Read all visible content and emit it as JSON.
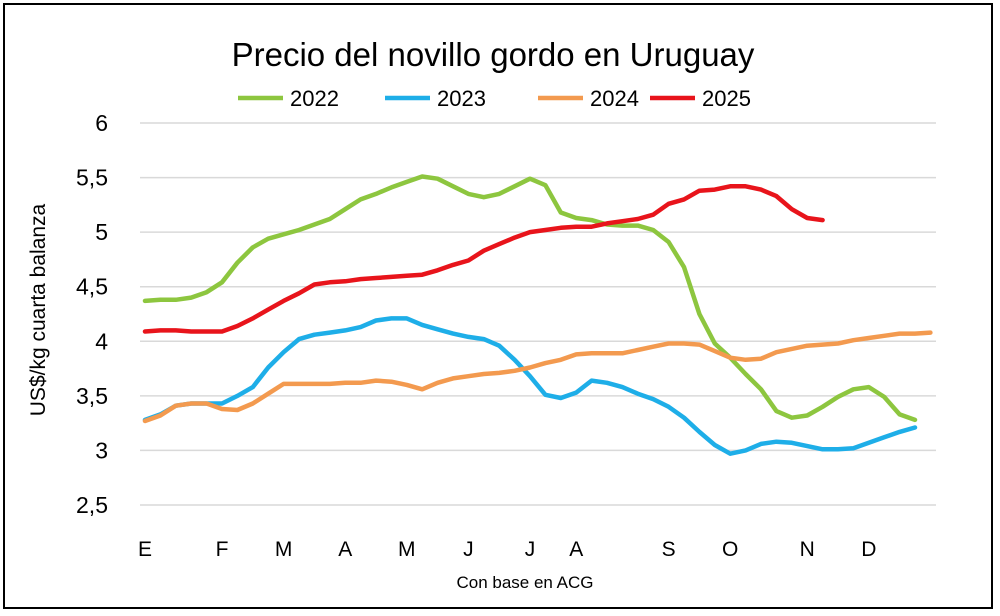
{
  "chart_data": {
    "type": "line",
    "title": "Precio del novillo gordo en Uruguay",
    "ylabel": "US$/kg cuarta balanza",
    "xlabel": "Con base en ACG",
    "ylim": [
      2.5,
      6
    ],
    "yticks": [
      "2,5",
      "3",
      "3,5",
      "4",
      "4,5",
      "5",
      "5,5",
      "6"
    ],
    "ytick_values": [
      2.5,
      3,
      3.5,
      4,
      4.5,
      5,
      5.5,
      6
    ],
    "xticks": [
      "E",
      "F",
      "M",
      "A",
      "M",
      "J",
      "J",
      "A",
      "S",
      "O",
      "N",
      "D"
    ],
    "xtick_weeks": [
      1,
      6,
      10,
      14,
      18,
      22,
      26,
      29,
      35,
      39,
      44,
      48
    ],
    "x_unit": "week of year",
    "grid": "horizontal",
    "legend_position": "top",
    "series": [
      {
        "name": "2022",
        "color": "#8DC63F",
        "values": [
          4.37,
          4.38,
          4.38,
          4.4,
          4.45,
          4.54,
          4.72,
          4.86,
          4.94,
          4.98,
          5.02,
          5.07,
          5.12,
          5.21,
          5.3,
          5.35,
          5.41,
          5.46,
          5.51,
          5.49,
          5.42,
          5.35,
          5.32,
          5.35,
          5.42,
          5.49,
          5.43,
          5.18,
          5.13,
          5.11,
          5.07,
          5.06,
          5.06,
          5.02,
          4.91,
          4.68,
          4.25,
          3.98,
          3.85,
          3.7,
          3.56,
          3.36,
          3.3,
          3.32,
          3.4,
          3.49,
          3.56,
          3.58,
          3.49,
          3.33,
          3.28
        ]
      },
      {
        "name": "2023",
        "color": "#1EAEE8",
        "values": [
          3.28,
          3.33,
          3.41,
          3.43,
          3.43,
          3.43,
          3.5,
          3.58,
          3.76,
          3.9,
          4.02,
          4.06,
          4.08,
          4.1,
          4.13,
          4.19,
          4.21,
          4.21,
          4.15,
          4.11,
          4.07,
          4.04,
          4.02,
          3.96,
          3.83,
          3.68,
          3.51,
          3.48,
          3.53,
          3.64,
          3.62,
          3.58,
          3.52,
          3.47,
          3.4,
          3.3,
          3.17,
          3.05,
          2.97,
          3.0,
          3.06,
          3.08,
          3.07,
          3.04,
          3.01,
          3.01,
          3.02,
          3.07,
          3.12,
          3.17,
          3.21
        ]
      },
      {
        "name": "2024",
        "color": "#F39A4F",
        "values": [
          3.27,
          3.32,
          3.41,
          3.43,
          3.43,
          3.38,
          3.37,
          3.43,
          3.52,
          3.61,
          3.61,
          3.61,
          3.61,
          3.62,
          3.62,
          3.64,
          3.63,
          3.6,
          3.56,
          3.62,
          3.66,
          3.68,
          3.7,
          3.71,
          3.73,
          3.76,
          3.8,
          3.83,
          3.88,
          3.89,
          3.89,
          3.89,
          3.92,
          3.95,
          3.98,
          3.98,
          3.97,
          3.91,
          3.85,
          3.83,
          3.84,
          3.9,
          3.93,
          3.96,
          3.97,
          3.98,
          4.01,
          4.03,
          4.05,
          4.07,
          4.07,
          4.08
        ]
      },
      {
        "name": "2025",
        "color": "#E8141B",
        "values": [
          4.09,
          4.1,
          4.1,
          4.09,
          4.09,
          4.09,
          4.14,
          4.21,
          4.29,
          4.37,
          4.44,
          4.52,
          4.54,
          4.55,
          4.57,
          4.58,
          4.59,
          4.6,
          4.61,
          4.65,
          4.7,
          4.74,
          4.83,
          4.89,
          4.95,
          5.0,
          5.02,
          5.04,
          5.05,
          5.05,
          5.08,
          5.1,
          5.12,
          5.16,
          5.26,
          5.3,
          5.38,
          5.39,
          5.42,
          5.42,
          5.39,
          5.33,
          5.21,
          5.13,
          5.11
        ]
      }
    ]
  }
}
